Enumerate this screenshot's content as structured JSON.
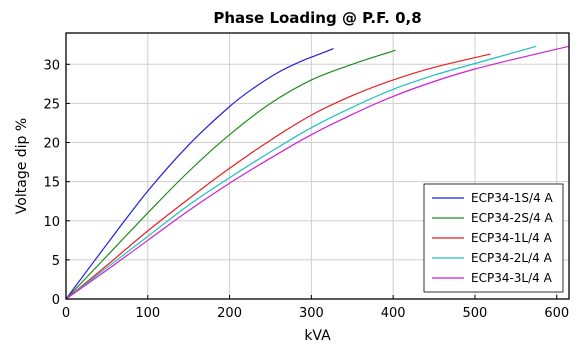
{
  "chart_data": {
    "type": "line",
    "title": "Phase Loading @ P.F. 0,8",
    "xlabel": "kVA",
    "ylabel": "Voltage dip %",
    "xlim": [
      0,
      615
    ],
    "ylim": [
      0,
      34
    ],
    "xticks": [
      0,
      100,
      200,
      300,
      400,
      500,
      600
    ],
    "yticks": [
      0,
      5,
      10,
      15,
      20,
      25,
      30
    ],
    "grid": true,
    "legend_position": "lower-right",
    "series": [
      {
        "name": "ECP34-1S/4 A",
        "color": "#2020e0",
        "x": [
          0,
          50,
          100,
          150,
          200,
          230,
          260,
          290,
          310,
          327
        ],
        "y": [
          0,
          7,
          13.8,
          19.7,
          24.6,
          27,
          29,
          30.5,
          31.3,
          32
        ]
      },
      {
        "name": "ECP34-2S/4 A",
        "color": "#1e8c1e",
        "x": [
          0,
          50,
          100,
          150,
          200,
          250,
          300,
          350,
          403
        ],
        "y": [
          0,
          5.5,
          11,
          16.3,
          21,
          25,
          28,
          30,
          31.8
        ]
      },
      {
        "name": "ECP34-1L/4 A",
        "color": "#e82020",
        "x": [
          0,
          50,
          100,
          150,
          200,
          250,
          300,
          350,
          400,
          450,
          519
        ],
        "y": [
          0,
          4.3,
          8.7,
          12.8,
          16.7,
          20.3,
          23.5,
          26,
          28,
          29.6,
          31.3
        ]
      },
      {
        "name": "ECP34-2L/4 A",
        "color": "#20c0c0",
        "x": [
          0,
          50,
          100,
          150,
          200,
          250,
          300,
          350,
          400,
          450,
          500,
          575
        ],
        "y": [
          0,
          4,
          8,
          12,
          15.5,
          18.8,
          21.9,
          24.5,
          26.8,
          28.6,
          30.1,
          32.3
        ]
      },
      {
        "name": "ECP34-3L/4 A",
        "color": "#d020d0",
        "x": [
          0,
          50,
          100,
          150,
          200,
          250,
          300,
          350,
          400,
          450,
          500,
          550,
          615
        ],
        "y": [
          0,
          3.7,
          7.5,
          11.3,
          14.8,
          18,
          21,
          23.6,
          25.9,
          27.8,
          29.4,
          30.7,
          32.3
        ]
      }
    ]
  }
}
